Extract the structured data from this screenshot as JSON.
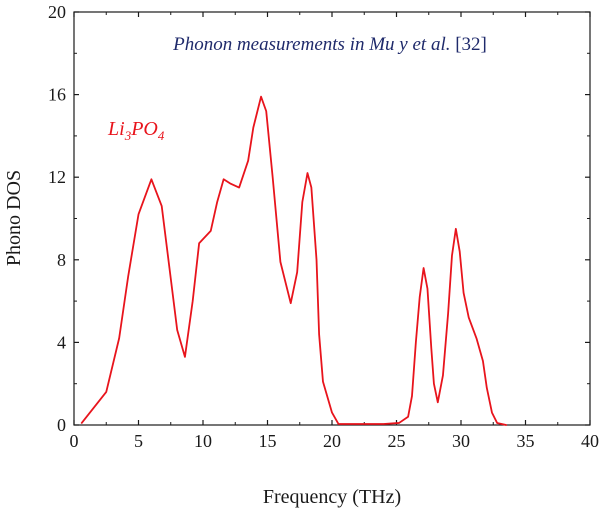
{
  "chart_data": {
    "type": "line",
    "title_main": "Phonon measurements in Mu y et al.",
    "title_ref": " [32]",
    "xlabel": "Frequency (THz)",
    "ylabel": "Phono DOS",
    "xlim": [
      0,
      40
    ],
    "ylim": [
      0,
      20
    ],
    "xticks": [
      "0",
      "5",
      "10",
      "15",
      "20",
      "25",
      "30",
      "35",
      "40"
    ],
    "yticks": [
      "0",
      "4",
      "8",
      "12",
      "16",
      "20"
    ],
    "grid": false,
    "legend": "none",
    "series_label": {
      "base1": "Li",
      "sub1": "3",
      "base2": "PO",
      "sub2": "4"
    },
    "series": [
      {
        "color": "#e8141c",
        "points": [
          [
            0.6,
            0.1
          ],
          [
            2.5,
            1.6
          ],
          [
            3.5,
            4.2
          ],
          [
            4.2,
            7.2
          ],
          [
            5.0,
            10.2
          ],
          [
            6.0,
            11.9
          ],
          [
            6.8,
            10.6
          ],
          [
            7.4,
            7.6
          ],
          [
            8.0,
            4.6
          ],
          [
            8.6,
            3.3
          ],
          [
            9.2,
            6.0
          ],
          [
            9.7,
            8.8
          ],
          [
            10.0,
            9.0
          ],
          [
            10.6,
            9.4
          ],
          [
            11.1,
            10.8
          ],
          [
            11.6,
            11.9
          ],
          [
            12.1,
            11.7
          ],
          [
            12.8,
            11.5
          ],
          [
            13.5,
            12.8
          ],
          [
            13.9,
            14.4
          ],
          [
            14.5,
            15.9
          ],
          [
            14.9,
            15.2
          ],
          [
            15.4,
            12.0
          ],
          [
            16.0,
            7.9
          ],
          [
            16.8,
            5.9
          ],
          [
            17.3,
            7.4
          ],
          [
            17.7,
            10.8
          ],
          [
            18.1,
            12.2
          ],
          [
            18.4,
            11.5
          ],
          [
            18.8,
            8.0
          ],
          [
            19.0,
            4.4
          ],
          [
            19.3,
            2.1
          ],
          [
            20.0,
            0.6
          ],
          [
            20.5,
            0.05
          ],
          [
            22.0,
            0.05
          ],
          [
            24.0,
            0.05
          ],
          [
            25.2,
            0.1
          ],
          [
            25.9,
            0.4
          ],
          [
            26.2,
            1.4
          ],
          [
            26.5,
            4.0
          ],
          [
            26.8,
            6.2
          ],
          [
            27.1,
            7.6
          ],
          [
            27.4,
            6.6
          ],
          [
            27.7,
            3.7
          ],
          [
            27.9,
            2.0
          ],
          [
            28.2,
            1.1
          ],
          [
            28.6,
            2.4
          ],
          [
            29.0,
            5.4
          ],
          [
            29.3,
            8.2
          ],
          [
            29.6,
            9.5
          ],
          [
            29.9,
            8.4
          ],
          [
            30.2,
            6.4
          ],
          [
            30.6,
            5.2
          ],
          [
            31.2,
            4.2
          ],
          [
            31.7,
            3.1
          ],
          [
            32.0,
            1.8
          ],
          [
            32.4,
            0.6
          ],
          [
            32.8,
            0.1
          ],
          [
            33.5,
            0.0
          ]
        ]
      }
    ]
  }
}
